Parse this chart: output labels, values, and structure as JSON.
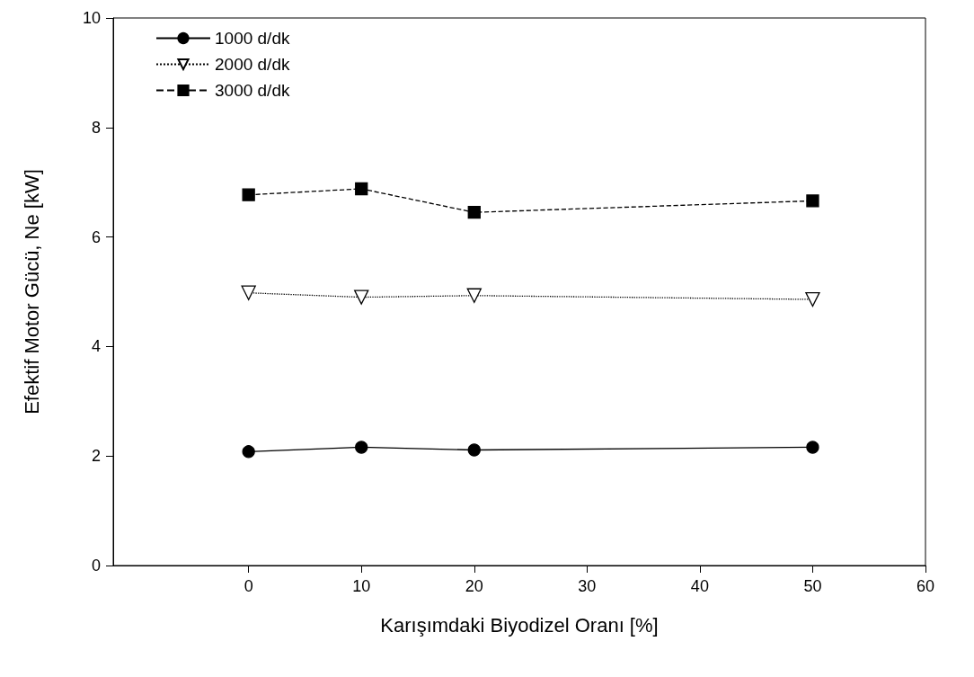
{
  "chart_data": {
    "type": "line",
    "xlabel": "Karışımdaki Biyodizel Oranı [%]",
    "ylabel": "Efektif Motor Gücü, Ne [kW]",
    "x": [
      0,
      10,
      20,
      50
    ],
    "series": [
      {
        "name": "1000 d/dk",
        "color": "#000000",
        "values": [
          2.08,
          2.16,
          2.11,
          2.16
        ],
        "marker": "circle",
        "line_style": "solid"
      },
      {
        "name": "2000 d/dk",
        "color": "#000000",
        "values": [
          4.98,
          4.9,
          4.93,
          4.86
        ],
        "marker": "triangle",
        "line_style": "dotted"
      },
      {
        "name": "3000 d/dk",
        "color": "#000000",
        "values": [
          6.77,
          6.88,
          6.45,
          6.66
        ],
        "marker": "square",
        "line_style": "dashed"
      }
    ],
    "xlim": [
      -12,
      60
    ],
    "xticks": [
      0,
      10,
      20,
      30,
      40,
      50,
      60
    ],
    "ylim": [
      0,
      10
    ],
    "yticks": [
      0,
      2,
      4,
      6,
      8,
      10
    ],
    "grid": false,
    "legend": "top left"
  }
}
